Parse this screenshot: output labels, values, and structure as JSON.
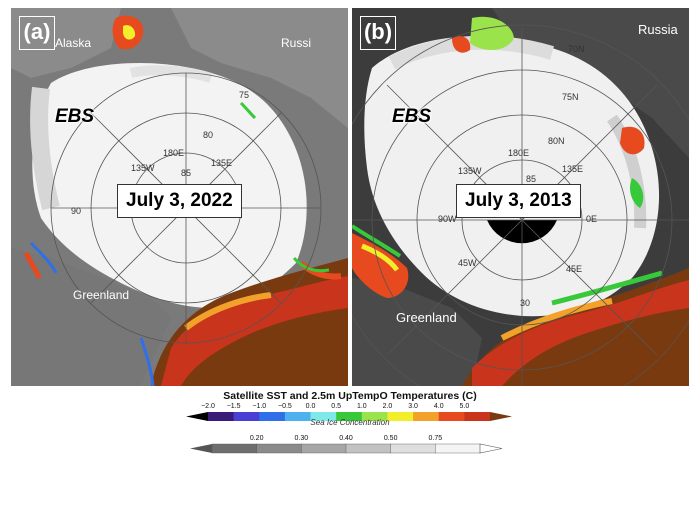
{
  "panel_a": {
    "letter": "(a)",
    "date": "July 3, 2022",
    "labels": {
      "alaska": "Alaska",
      "russia": "Russi",
      "greenland": "Greenland",
      "ebs": "EBS"
    },
    "grid_labels": {
      "lat_75": "75",
      "lat_80": "80",
      "lon_180e": "180E",
      "lon_135w": "135W",
      "lon_135e": "135E",
      "lon_90": "90",
      "lat_85": "85"
    }
  },
  "panel_b": {
    "letter": "(b)",
    "date": "July 3, 2013",
    "labels": {
      "russia": "Russia",
      "greenland": "Greenland",
      "ebs": "EBS"
    },
    "grid_labels": {
      "lat_70": "70N",
      "lat_75": "75N",
      "lat_80": "80N",
      "lon_180e": "180E",
      "lon_135w": "135W",
      "lon_135e": "135E",
      "lon_90w": "90W",
      "lon_45w": "45W",
      "lon_45e": "45E",
      "lon_0e": "0E",
      "lon_30": "30",
      "lat_85": "85"
    }
  },
  "sst_colorbar": {
    "title": "Satellite SST and 2.5m UpTempO Temperatures (C)",
    "ticks": [
      "−2.0",
      "−1.5",
      "−1.0",
      "−0.5",
      "0.0",
      "0.5",
      "1.0",
      "2.0",
      "3.0",
      "4.0",
      "5.0"
    ],
    "colors": [
      "#3a1b78",
      "#4a3fd4",
      "#2f6fea",
      "#4fb0f0",
      "#7fe8e8",
      "#37c93a",
      "#9be34a",
      "#f2ee2a",
      "#f2a22a",
      "#e64a1e",
      "#c9341c"
    ],
    "low_color": "#000000",
    "high_color": "#7a3a10"
  },
  "ice_colorbar": {
    "title": "Sea Ice Concentration",
    "ticks": [
      "0.20",
      "0.30",
      "0.40",
      "0.50",
      "0.75"
    ],
    "colors": [
      "#6e6e6e",
      "#8a8a8a",
      "#a6a6a6",
      "#c2c2c2",
      "#dedede",
      "#f4f4f4"
    ]
  }
}
